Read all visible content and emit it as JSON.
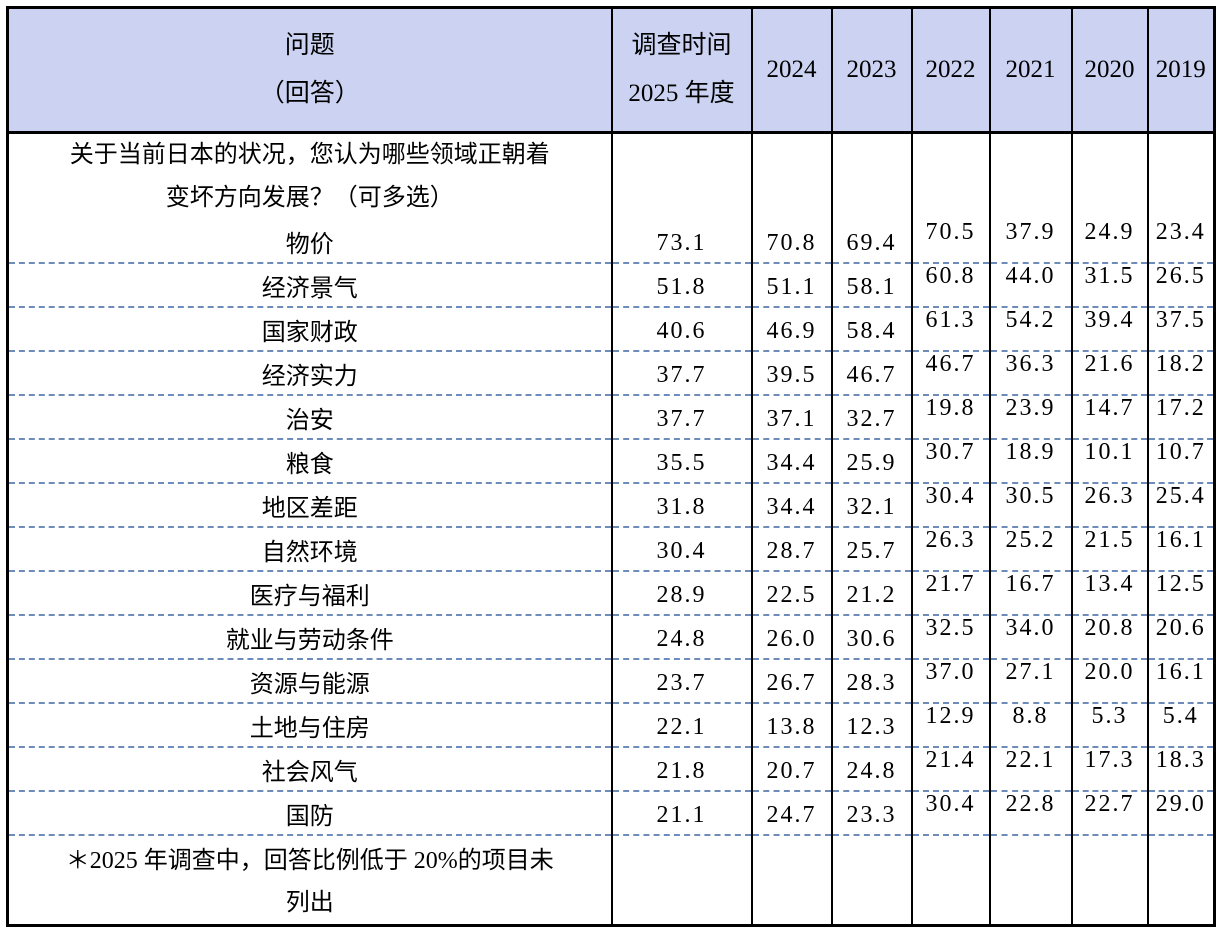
{
  "header": {
    "question_line1": "问题",
    "question_line2": "（回答）",
    "survey_time_line1": "调查时间",
    "survey_time_line2": "2025 年度",
    "years": [
      "2024",
      "2023",
      "2022",
      "2021",
      "2020",
      "2019"
    ]
  },
  "question": {
    "line1": "关于当前日本的状况，您认为哪些领域正朝着",
    "line2": "变坏方向发展？（可多选）"
  },
  "rows": [
    {
      "label": "物价",
      "values": [
        "73.1",
        "70.8",
        "69.4",
        "70.5",
        "37.9",
        "24.9",
        "23.4"
      ]
    },
    {
      "label": "经济景气",
      "values": [
        "51.8",
        "51.1",
        "58.1",
        "60.8",
        "44.0",
        "31.5",
        "26.5"
      ]
    },
    {
      "label": "国家财政",
      "values": [
        "40.6",
        "46.9",
        "58.4",
        "61.3",
        "54.2",
        "39.4",
        "37.5"
      ]
    },
    {
      "label": "经济实力",
      "values": [
        "37.7",
        "39.5",
        "46.7",
        "46.7",
        "36.3",
        "21.6",
        "18.2"
      ]
    },
    {
      "label": "治安",
      "values": [
        "37.7",
        "37.1",
        "32.7",
        "19.8",
        "23.9",
        "14.7",
        "17.2"
      ]
    },
    {
      "label": "粮食",
      "values": [
        "35.5",
        "34.4",
        "25.9",
        "30.7",
        "18.9",
        "10.1",
        "10.7"
      ]
    },
    {
      "label": "地区差距",
      "values": [
        "31.8",
        "34.4",
        "32.1",
        "30.4",
        "30.5",
        "26.3",
        "25.4"
      ]
    },
    {
      "label": "自然环境",
      "values": [
        "30.4",
        "28.7",
        "25.7",
        "26.3",
        "25.2",
        "21.5",
        "16.1"
      ]
    },
    {
      "label": "医疗与福利",
      "values": [
        "28.9",
        "22.5",
        "21.2",
        "21.7",
        "16.7",
        "13.4",
        "12.5"
      ]
    },
    {
      "label": "就业与劳动条件",
      "values": [
        "24.8",
        "26.0",
        "30.6",
        "32.5",
        "34.0",
        "20.8",
        "20.6"
      ]
    },
    {
      "label": "资源与能源",
      "values": [
        "23.7",
        "26.7",
        "28.3",
        "37.0",
        "27.1",
        "20.0",
        "16.1"
      ]
    },
    {
      "label": "土地与住房",
      "values": [
        "22.1",
        "13.8",
        "12.3",
        "12.9",
        "8.8",
        "5.3",
        "5.4"
      ]
    },
    {
      "label": "社会风气",
      "values": [
        "21.8",
        "20.7",
        "24.8",
        "21.4",
        "22.1",
        "17.3",
        "18.3"
      ]
    },
    {
      "label": "国防",
      "values": [
        "21.1",
        "24.7",
        "23.3",
        "30.4",
        "22.8",
        "22.7",
        "29.0"
      ]
    }
  ],
  "footnote": {
    "line1": "＊2025 年调查中，回答比例低于 20%的项目未",
    "line2": "列出"
  },
  "colors": {
    "header_bg": "#ccd3f2",
    "dashed_separator": "#6e8cb9",
    "grid_border": "#000000"
  }
}
